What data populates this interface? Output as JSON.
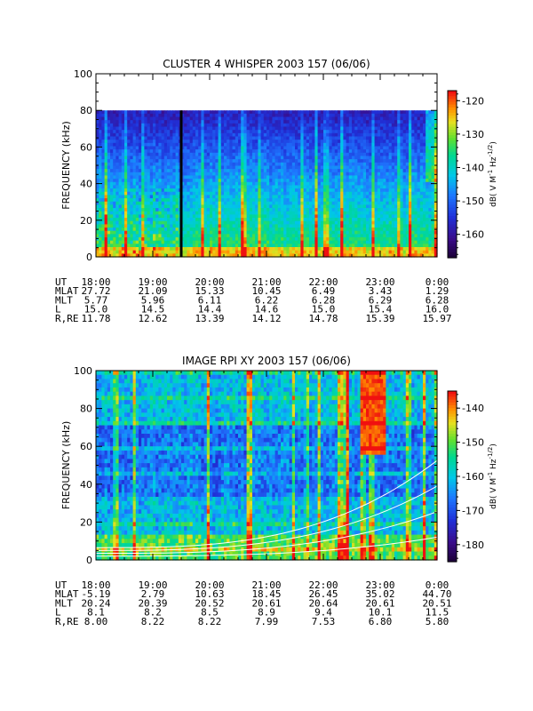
{
  "chart_data": [
    {
      "type": "heatmap",
      "title": "CLUSTER 4 WHISPER 2003 157 (06/06)",
      "ylabel": "FREQUENCY (kHz)",
      "ylim": [
        0,
        100
      ],
      "yticks": [
        "0",
        "20",
        "40",
        "60",
        "80",
        "100"
      ],
      "xlim": [
        "18:00",
        "0:00"
      ],
      "data_upper_frequency_khz": 80,
      "marker_time": "19:30",
      "colorbar": {
        "label": "dB( V M⁻¹ Hz⁻¹ᐟ²)",
        "label_parts": [
          "dB( V M",
          "-1",
          " Hz",
          "-1/2",
          ")"
        ],
        "range": [
          -167,
          -117
        ],
        "ticks": [
          "-120",
          "-130",
          "-140",
          "-150",
          "-160"
        ]
      },
      "ephemeris": {
        "rows": [
          {
            "label": "UT",
            "values": [
              "18:00",
              "19:00",
              "20:00",
              "21:00",
              "22:00",
              "23:00",
              "0:00"
            ]
          },
          {
            "label": "MLAT",
            "values": [
              "27.72",
              "21.09",
              "15.33",
              "10.45",
              "6.49",
              "3.43",
              "1.29"
            ]
          },
          {
            "label": "MLT",
            "values": [
              "5.77",
              "5.96",
              "6.11",
              "6.22",
              "6.28",
              "6.29",
              "6.28"
            ]
          },
          {
            "label": "L",
            "values": [
              "15.0",
              "14.5",
              "14.4",
              "14.6",
              "15.0",
              "15.4",
              "16.0"
            ]
          },
          {
            "label": "R,RE",
            "values": [
              "11.78",
              "12.62",
              "13.39",
              "14.12",
              "14.78",
              "15.39",
              "15.97"
            ]
          }
        ]
      }
    },
    {
      "type": "heatmap",
      "title": "IMAGE RPI XY 2003 157 (06/06)",
      "ylabel": "FREQUENCY (kHz)",
      "ylim": [
        0,
        100
      ],
      "yticks": [
        "0",
        "20",
        "40",
        "60",
        "80",
        "100"
      ],
      "xlim": [
        "18:00",
        "0:00"
      ],
      "colorbar": {
        "label": "dB( V M⁻¹ Hz⁻¹ᐟ²)",
        "label_parts": [
          "dB( V M",
          "-1",
          " Hz",
          "-1/2",
          ")"
        ],
        "range": [
          -185,
          -135
        ],
        "ticks": [
          "-140",
          "-150",
          "-160",
          "-170",
          "-180"
        ]
      },
      "ephemeris": {
        "rows": [
          {
            "label": "UT",
            "values": [
              "18:00",
              "19:00",
              "20:00",
              "21:00",
              "22:00",
              "23:00",
              "0:00"
            ]
          },
          {
            "label": "MLAT",
            "values": [
              "-5.19",
              "2.79",
              "10.63",
              "18.45",
              "26.45",
              "35.02",
              "44.70"
            ]
          },
          {
            "label": "MLT",
            "values": [
              "20.24",
              "20.39",
              "20.52",
              "20.61",
              "20.64",
              "20.61",
              "20.51"
            ]
          },
          {
            "label": "L",
            "values": [
              "8.1",
              "8.2",
              "8.5",
              "8.9",
              "9.4",
              "10.1",
              "11.5"
            ]
          },
          {
            "label": "R,RE",
            "values": [
              "8.00",
              "8.22",
              "8.22",
              "7.99",
              "7.53",
              "6.80",
              "5.80"
            ]
          }
        ]
      }
    }
  ]
}
